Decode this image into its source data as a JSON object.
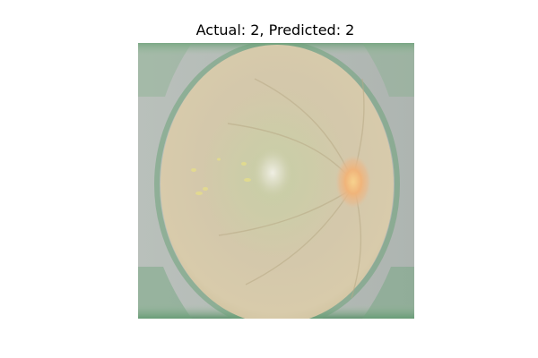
{
  "figure": {
    "title": "Actual: 2, Predicted: 2"
  },
  "image": {
    "subject": "retinal-fundus-photograph",
    "colors": {
      "background_gray": "#b5bcb7",
      "edge_green": "#5f9a6f",
      "fundus_base": "#d3c7a9",
      "fundus_center": "#c9c6a5",
      "optic_disc": "#f0b878",
      "macula_pale": "#e8e8d8",
      "lesion_yellow": "#e6de8a"
    }
  }
}
